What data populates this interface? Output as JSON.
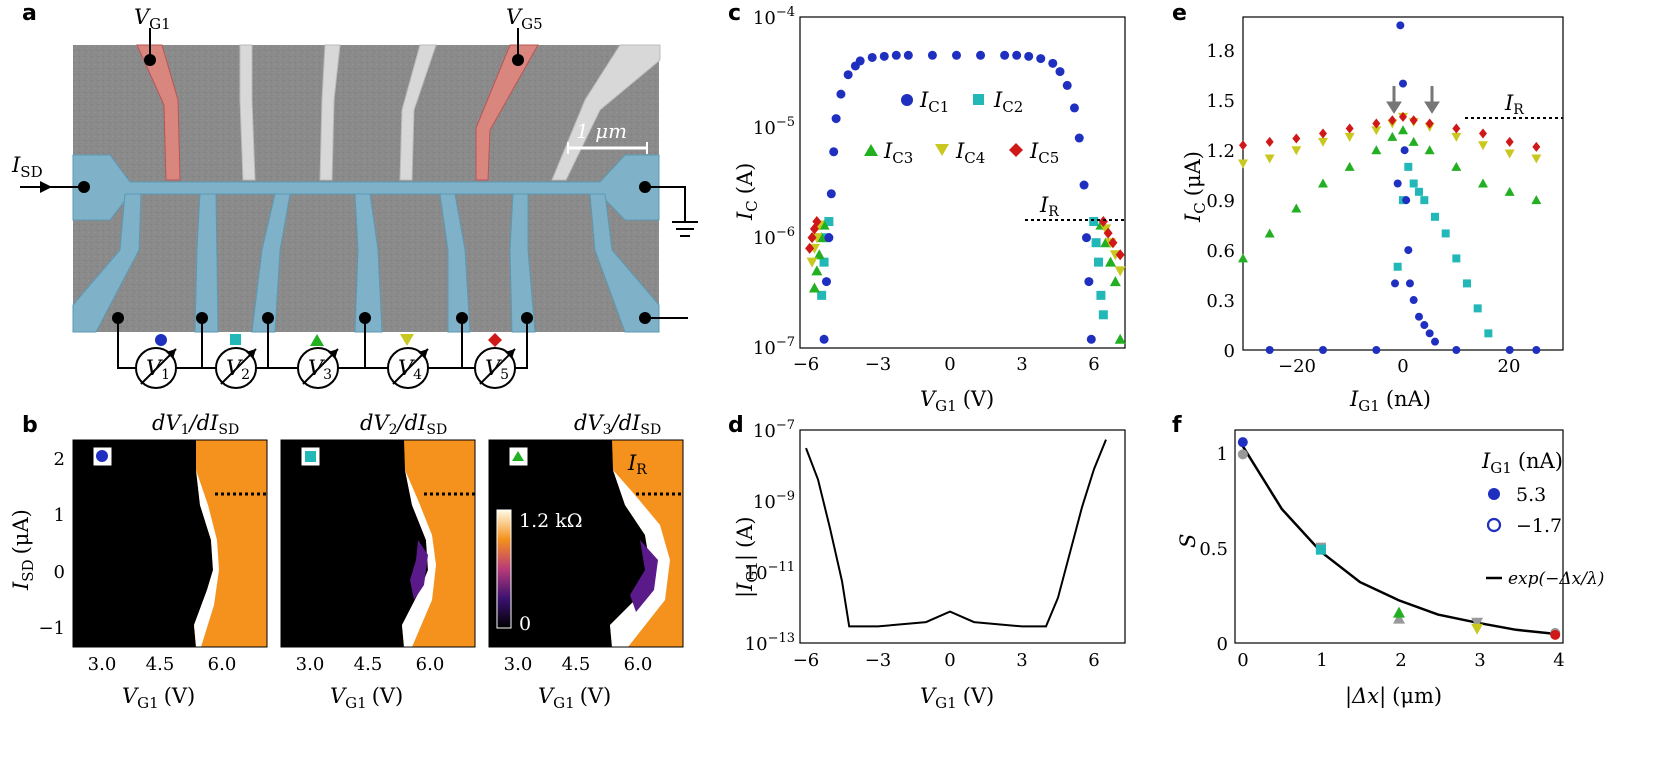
{
  "panel_labels": [
    "a",
    "b",
    "c",
    "d",
    "e",
    "f"
  ],
  "panel_a": {
    "gate_left": "V",
    "gate_left_sub": "G1",
    "gate_right": "V",
    "gate_right_sub": "G5",
    "source": "I",
    "source_sub": "SD",
    "scale_bar": "1 μm",
    "voltmeters": [
      {
        "label": "V",
        "sub": "1",
        "marker": "circle",
        "color": "#1f2fbf"
      },
      {
        "label": "V",
        "sub": "2",
        "marker": "square",
        "color": "#22b8b8"
      },
      {
        "label": "V",
        "sub": "3",
        "marker": "triangle-up",
        "color": "#22b022"
      },
      {
        "label": "V",
        "sub": "4",
        "marker": "triangle-down",
        "color": "#c8c820"
      },
      {
        "label": "V",
        "sub": "5",
        "marker": "diamond",
        "color": "#d01818"
      }
    ]
  },
  "panel_b": {
    "subpanels": [
      {
        "title": "dV",
        "title_sub": "1",
        "title_den": "/dI",
        "title_den_sub": "SD",
        "marker": "circle",
        "color": "#1f2fbf"
      },
      {
        "title": "dV",
        "title_sub": "2",
        "title_den": "/dI",
        "title_den_sub": "SD",
        "marker": "square",
        "color": "#22b8b8"
      },
      {
        "title": "dV",
        "title_sub": "3",
        "title_den": "/dI",
        "title_den_sub": "SD",
        "marker": "triangle",
        "color": "#22b022"
      }
    ],
    "x_ticks": [
      "3.0",
      "4.5",
      "6.0"
    ],
    "y_ticks": [
      "2",
      "1",
      "0",
      "−1"
    ],
    "ylabel": "I",
    "ylabel_sub": "SD",
    "ylabel_unit": "(μA)",
    "xlabel": "V",
    "xlabel_sub": "G1",
    "xlabel_unit": "(V)",
    "colorbar_max": "1.2 kΩ",
    "colorbar_min": "0",
    "ir_label": "I",
    "ir_sub": "R"
  },
  "chart_data": [
    {
      "panel": "c",
      "type": "scatter",
      "xlabel": "V_G1 (V)",
      "ylabel": "I_C (A)",
      "xlim": [
        -6.5,
        7
      ],
      "ylim_log10": [
        -7,
        -4
      ],
      "yscale": "log",
      "x_ticks": [
        "−6",
        "−3",
        "0",
        "3",
        "6"
      ],
      "y_ticks": [
        "10−7",
        "10−6",
        "10−5",
        "10−4"
      ],
      "legend": [
        "I_C1",
        "I_C2",
        "I_C3",
        "I_C4",
        "I_C5"
      ],
      "ir_label": "I_R",
      "series": [
        {
          "name": "I_C1",
          "marker": "circle",
          "color": "#1f2fbf",
          "x": [
            -5.5,
            -5.4,
            -5.3,
            -5.2,
            -5.1,
            -5.0,
            -4.8,
            -4.5,
            -4.2,
            -4.0,
            -3.5,
            -3.0,
            -2.5,
            -2.0,
            -1.0,
            0,
            1.0,
            2.0,
            2.5,
            3.0,
            3.5,
            4.0,
            4.3,
            4.6,
            4.9,
            5.1,
            5.3,
            5.4,
            5.5,
            5.6
          ],
          "y": [
            1.2e-07,
            4e-07,
            1e-06,
            2.5e-06,
            6e-06,
            1.2e-05,
            2e-05,
            3e-05,
            3.6e-05,
            4e-05,
            4.3e-05,
            4.4e-05,
            4.5e-05,
            4.5e-05,
            4.5e-05,
            4.5e-05,
            4.5e-05,
            4.5e-05,
            4.5e-05,
            4.4e-05,
            4.2e-05,
            3.8e-05,
            3.2e-05,
            2.4e-05,
            1.5e-05,
            8e-06,
            3e-06,
            1e-06,
            4e-07,
            1.2e-07
          ]
        },
        {
          "name": "I_C2",
          "marker": "square",
          "color": "#22b8b8",
          "x": [
            -5.6,
            -5.5,
            -5.4,
            -5.3,
            5.7,
            5.8,
            5.9,
            6.0,
            6.1
          ],
          "y": [
            3e-07,
            6e-07,
            1e-06,
            1.4e-06,
            1.4e-06,
            9e-07,
            6e-07,
            3e-07,
            2e-07
          ]
        },
        {
          "name": "I_C3",
          "marker": "triangle-up",
          "color": "#22b022",
          "x": [
            -5.9,
            -5.8,
            -5.7,
            -5.6,
            -5.5,
            6.0,
            6.2,
            6.4,
            6.6,
            6.8
          ],
          "y": [
            3.5e-07,
            5e-07,
            7e-07,
            1e-06,
            1.3e-06,
            1.3e-06,
            9e-07,
            6e-07,
            4e-07,
            1.2e-07
          ]
        },
        {
          "name": "I_C4",
          "marker": "triangle-down",
          "color": "#c8c820",
          "x": [
            -6.0,
            -5.9,
            -5.8,
            -5.7,
            6.2,
            6.4,
            6.6,
            6.8
          ],
          "y": [
            6e-07,
            8e-07,
            1e-06,
            1.3e-06,
            1.2e-06,
            9e-07,
            7e-07,
            5e-07
          ]
        },
        {
          "name": "I_C5",
          "marker": "diamond",
          "color": "#d01818",
          "x": [
            -6.1,
            -6.0,
            -5.9,
            -5.8,
            6.1,
            6.3,
            6.5,
            6.8
          ],
          "y": [
            8e-07,
            1e-06,
            1.2e-06,
            1.4e-06,
            1.4e-06,
            1.1e-06,
            9e-07,
            7e-07
          ]
        }
      ]
    },
    {
      "panel": "d",
      "type": "line",
      "xlabel": "V_G1 (V)",
      "ylabel": "|I_G1| (A)",
      "xlim": [
        -6,
        7
      ],
      "ylim_log10": [
        -13,
        -7
      ],
      "yscale": "log",
      "x_ticks": [
        "−6",
        "−3",
        "0",
        "3",
        "6"
      ],
      "y_ticks": [
        "10−13",
        "10−11",
        "10−9",
        "10−7"
      ],
      "series": [
        {
          "name": "|I_G1|",
          "x": [
            -6.0,
            -5.5,
            -5.0,
            -4.5,
            -4.2,
            -3.0,
            -1.0,
            0,
            1.0,
            3.0,
            4.0,
            4.5,
            5.0,
            5.5,
            6.0,
            6.5
          ],
          "y": [
            4e-08,
            5e-09,
            2e-10,
            6e-12,
            3e-13,
            3e-13,
            4e-13,
            8e-13,
            4e-13,
            3e-13,
            3e-13,
            2e-12,
            4e-11,
            8e-10,
            1e-08,
            7e-08
          ]
        }
      ]
    },
    {
      "panel": "e",
      "type": "scatter",
      "xlabel": "I_G1 (nA)",
      "ylabel": "I_C (μA)",
      "xlim": [
        -30,
        30
      ],
      "ylim": [
        0,
        2.0
      ],
      "x_ticks": [
        "−20",
        "0",
        "20"
      ],
      "y_ticks": [
        "0",
        "0.3",
        "0.6",
        "0.9",
        "1.2",
        "1.5",
        "1.8"
      ],
      "ir_label": "I_R",
      "series": [
        {
          "name": "I_C1",
          "marker": "circle",
          "color": "#1f2fbf",
          "x": [
            -0.5,
            0,
            0.3,
            0.6,
            1.0,
            1.3,
            2.0,
            3.0,
            4.0,
            5.0,
            6.0,
            -1.0,
            -1.5,
            -25,
            -15,
            -5,
            10,
            20,
            25
          ],
          "y": [
            1.95,
            1.6,
            1.2,
            0.9,
            0.6,
            0.4,
            0.3,
            0.2,
            0.15,
            0.1,
            0.05,
            1.0,
            0.4,
            0,
            0,
            0,
            0,
            0,
            0
          ]
        },
        {
          "name": "I_C2",
          "marker": "square",
          "color": "#22b8b8",
          "x": [
            -1.0,
            0,
            1.0,
            2.0,
            3.0,
            4.0,
            6.0,
            8.0,
            10.0,
            12.0,
            14.0,
            16.0
          ],
          "y": [
            0.5,
            0.9,
            1.1,
            1.0,
            0.95,
            0.9,
            0.8,
            0.7,
            0.55,
            0.4,
            0.25,
            0.1
          ]
        },
        {
          "name": "I_C3",
          "marker": "triangle-up",
          "color": "#22b022",
          "x": [
            -30,
            -25,
            -20,
            -15,
            -10,
            -5,
            -2,
            0,
            2,
            5,
            10,
            15,
            20,
            25
          ],
          "y": [
            0.55,
            0.7,
            0.85,
            1.0,
            1.1,
            1.2,
            1.28,
            1.32,
            1.25,
            1.2,
            1.1,
            1.0,
            0.95,
            0.9
          ]
        },
        {
          "name": "I_C4",
          "marker": "triangle-down",
          "color": "#c8c820",
          "x": [
            -30,
            -25,
            -20,
            -15,
            -10,
            -5,
            -2,
            0,
            2,
            5,
            10,
            15,
            20,
            25
          ],
          "y": [
            1.12,
            1.15,
            1.2,
            1.25,
            1.28,
            1.32,
            1.36,
            1.4,
            1.37,
            1.34,
            1.28,
            1.23,
            1.18,
            1.15
          ]
        },
        {
          "name": "I_C5",
          "marker": "diamond",
          "color": "#d01818",
          "x": [
            -30,
            -25,
            -20,
            -15,
            -10,
            -5,
            -2,
            0,
            2,
            5,
            10,
            15,
            20,
            25
          ],
          "y": [
            1.23,
            1.25,
            1.27,
            1.3,
            1.33,
            1.36,
            1.38,
            1.4,
            1.38,
            1.36,
            1.33,
            1.3,
            1.25,
            1.22
          ]
        }
      ]
    },
    {
      "panel": "f",
      "type": "scatter",
      "xlabel": "|Δx| (μm)",
      "ylabel": "S",
      "xlim": [
        -0.1,
        4.1
      ],
      "ylim": [
        0,
        1.05
      ],
      "x_ticks": [
        "0",
        "1",
        "2",
        "3",
        "4"
      ],
      "y_ticks": [
        "0",
        "0.5",
        "1"
      ],
      "legend_title": "I_G1 (nA)",
      "legend": [
        "5.3",
        "−1.7",
        "exp(−Δx/λ)"
      ],
      "series": [
        {
          "name": "5.3",
          "x": [
            0,
            1,
            2,
            3,
            4
          ],
          "y": [
            0.99,
            0.46,
            0.15,
            0.07,
            0.04
          ]
        },
        {
          "name": "−1.7",
          "x": [
            0,
            1,
            2,
            3,
            4
          ],
          "y": [
            0.93,
            0.47,
            0.12,
            0.1,
            0.05
          ]
        },
        {
          "name": "exp(−Δx/λ)",
          "x": [
            0,
            0.5,
            1,
            1.5,
            2,
            2.5,
            3,
            3.5,
            4
          ],
          "y": [
            0.97,
            0.66,
            0.45,
            0.3,
            0.21,
            0.14,
            0.1,
            0.065,
            0.045
          ]
        }
      ]
    }
  ]
}
